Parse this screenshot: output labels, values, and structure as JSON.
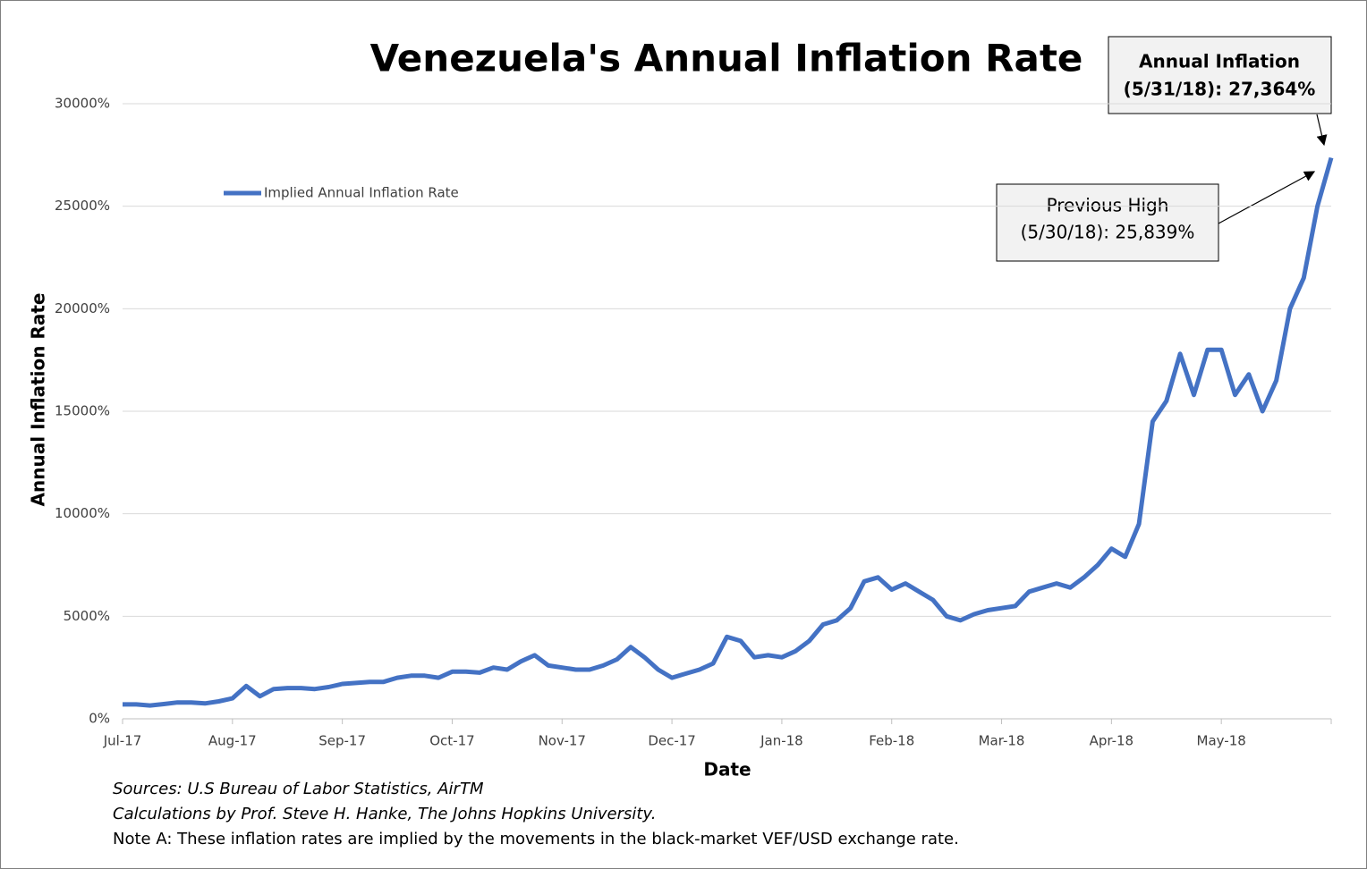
{
  "chart_data": {
    "type": "line",
    "title": "Venezuela's Annual Inflation Rate",
    "x_label": "Date",
    "y_label": "Annual Inflation Rate",
    "categories": [
      "Jul-17",
      null,
      null,
      null,
      null,
      null,
      null,
      null,
      "Aug-17",
      null,
      null,
      null,
      null,
      null,
      null,
      null,
      "Sep-17",
      null,
      null,
      null,
      null,
      null,
      null,
      null,
      "Oct-17",
      null,
      null,
      null,
      null,
      null,
      null,
      null,
      "Nov-17",
      null,
      null,
      null,
      null,
      null,
      null,
      null,
      "Dec-17",
      null,
      null,
      null,
      null,
      null,
      null,
      null,
      "Jan-18",
      null,
      null,
      null,
      null,
      null,
      null,
      null,
      "Feb-18",
      null,
      null,
      null,
      null,
      null,
      null,
      null,
      "Mar-18",
      null,
      null,
      null,
      null,
      null,
      null,
      null,
      "Apr-18",
      null,
      null,
      null,
      null,
      null,
      null,
      null,
      "May-18",
      null,
      null,
      null,
      null,
      null,
      null,
      null,
      null
    ],
    "series": [
      {
        "name": "Implied Annual Inflation Rate",
        "color": "#4472c4",
        "values": [
          700,
          700,
          650,
          720,
          800,
          800,
          750,
          850,
          1000,
          1600,
          1100,
          1450,
          1500,
          1500,
          1450,
          1550,
          1700,
          1750,
          1800,
          1800,
          2000,
          2100,
          2100,
          2000,
          2300,
          2300,
          2250,
          2500,
          2400,
          2800,
          3100,
          2600,
          2500,
          2400,
          2400,
          2600,
          2900,
          3500,
          3000,
          2400,
          2000,
          2200,
          2400,
          2700,
          4000,
          3800,
          3000,
          3100,
          3000,
          3300,
          3800,
          4600,
          4800,
          5400,
          6700,
          6900,
          6300,
          6600,
          6200,
          5800,
          5000,
          4800,
          5100,
          5300,
          5400,
          5500,
          6200,
          6400,
          6600,
          6400,
          6900,
          7500,
          8300,
          7900,
          9500,
          14500,
          15500,
          17800,
          15800,
          18000,
          18000,
          15800,
          16800,
          15000,
          16500,
          20000,
          21500,
          25000,
          27364
        ]
      }
    ],
    "ylim": [
      0,
      30000
    ],
    "yticks": [
      {
        "value": 0,
        "label": "0%"
      },
      {
        "value": 5000,
        "label": "5000%"
      },
      {
        "value": 10000,
        "label": "10000%"
      },
      {
        "value": 15000,
        "label": "15000%"
      },
      {
        "value": 20000,
        "label": "20000%"
      },
      {
        "value": 25000,
        "label": "25000%"
      },
      {
        "value": 30000,
        "label": "30000%"
      }
    ],
    "grid": true,
    "legend": "top-left",
    "annotations": [
      {
        "lines": [
          "Annual Inflation",
          "(5/31/18): 27,364%"
        ]
      },
      {
        "lines": [
          "Previous High",
          "(5/30/18): 25,839%"
        ]
      }
    ],
    "notes": [
      "Sources: U.S Bureau of Labor Statistics, AirTM",
      "Calculations by Prof. Steve H. Hanke, The Johns Hopkins University.",
      "Note A: These inflation rates are implied by the movements in the black-market VEF/USD exchange rate."
    ]
  }
}
